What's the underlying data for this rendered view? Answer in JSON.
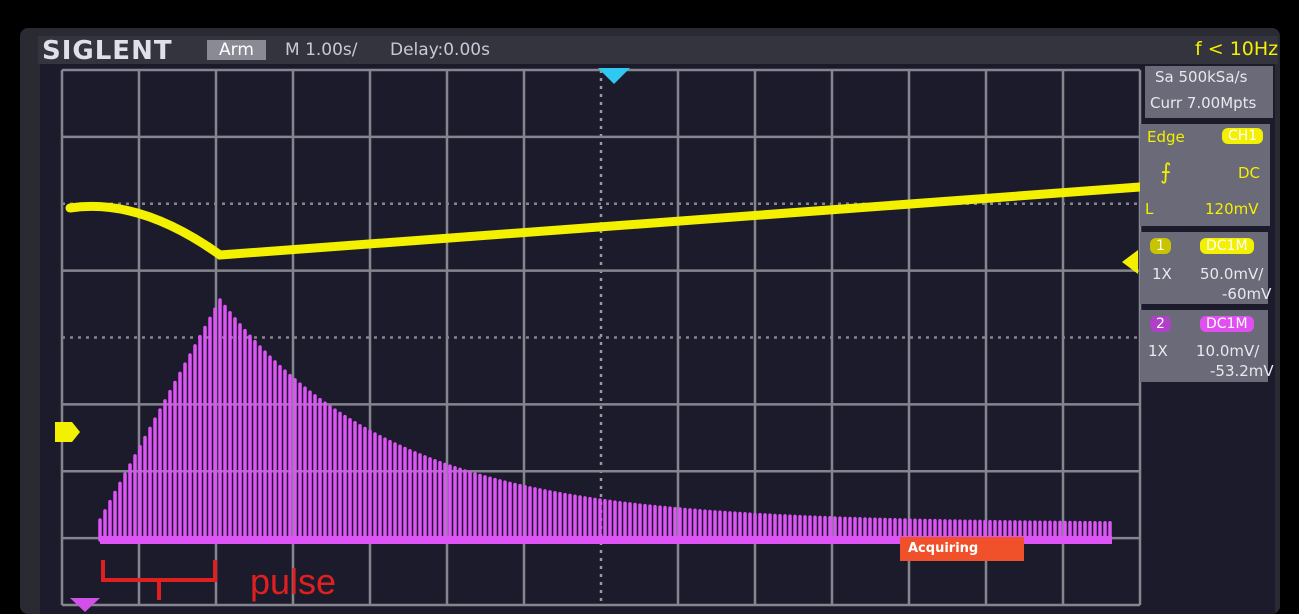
{
  "header": {
    "brand": "SIGLENT",
    "status": "Arm",
    "timebase": "M 1.00s/",
    "delay": "Delay:0.00s",
    "frequency": "f < 10Hz"
  },
  "side_panel": {
    "sample_rate": "Sa 500kSa/s",
    "memory": "Curr 7.00Mpts",
    "trigger": {
      "type": "Edge",
      "source": "CH1",
      "coupling": "DC",
      "level_label": "L",
      "level": "120mV"
    },
    "channels": [
      {
        "number": "1",
        "coupling": "DC1M",
        "probe": "1X",
        "scale": "50.0mV/",
        "offset": "-60mV"
      },
      {
        "number": "2",
        "coupling": "DC1M",
        "probe": "1X",
        "scale": "10.0mV/",
        "offset": "-53.2mV"
      }
    ]
  },
  "status": "Acquiring",
  "annotation": "pulse"
}
